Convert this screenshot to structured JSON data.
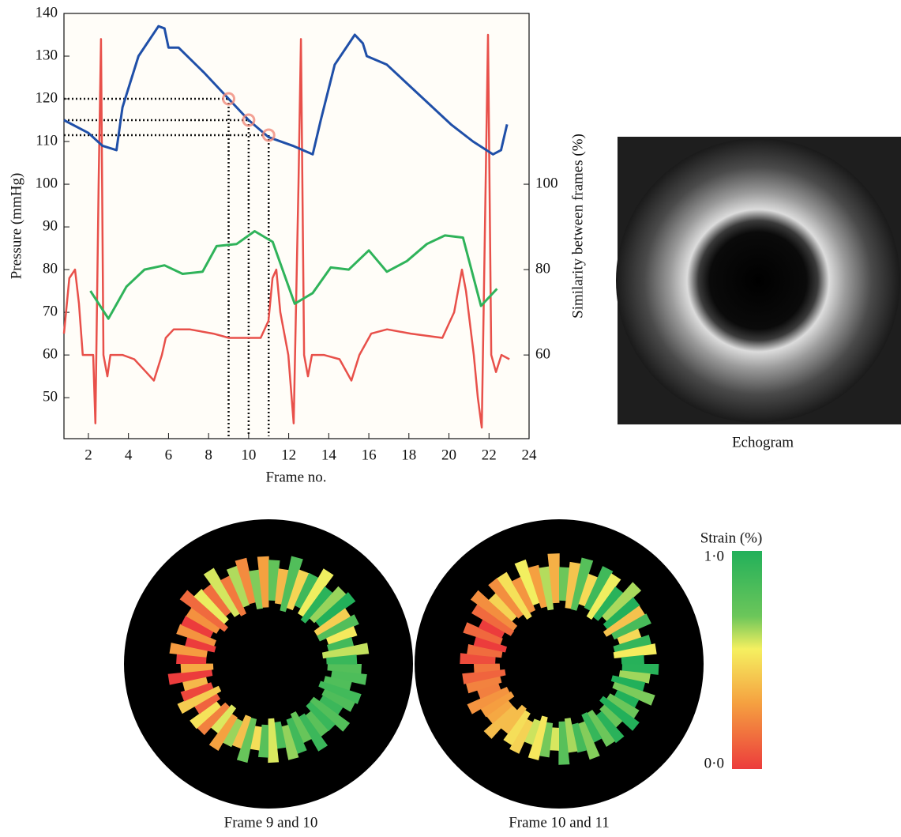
{
  "chart_data": {
    "type": "line",
    "xlabel": "Frame no.",
    "ylabel": "Pressure (mmHg)",
    "y2label": "Similarity between frames (%)",
    "xlim": [
      0.78,
      24
    ],
    "xticks": [
      2,
      4,
      6,
      8,
      10,
      12,
      14,
      16,
      18,
      20,
      22,
      24
    ],
    "ylim": [
      40.4,
      140
    ],
    "yticks": [
      50,
      60,
      70,
      80,
      90,
      100,
      110,
      120,
      130,
      140
    ],
    "y2lim": [
      40.4,
      140
    ],
    "y2ticks": [
      60,
      80,
      100
    ],
    "series": [
      {
        "color": "#e8504a",
        "x": [
          0.78,
          1.05,
          1.33,
          1.53,
          1.72,
          2.24,
          2.35,
          2.51,
          2.63,
          2.75,
          2.95,
          3.1,
          3.7,
          4.29,
          4.88,
          5.27,
          5.67,
          5.86,
          6.26,
          7.05,
          8.23,
          9.02,
          10.6,
          10.99,
          11.19,
          11.38,
          11.58,
          11.98,
          12.25,
          12.49,
          12.61,
          12.77,
          12.96,
          13.16,
          13.75,
          14.54,
          15.13,
          15.53,
          16.12,
          16.91,
          18.09,
          19.67,
          20.26,
          20.65,
          20.85,
          21.24,
          21.44,
          21.64,
          21.83,
          21.95,
          22.11,
          22.35,
          22.62,
          23.02
        ],
        "values": [
          65,
          78,
          80,
          72,
          60,
          60,
          44,
          100,
          134,
          60,
          55,
          60,
          60,
          59,
          56,
          54,
          60,
          64,
          66,
          66,
          65,
          64,
          64,
          68,
          78,
          80,
          70,
          60,
          44,
          100,
          134,
          60,
          55,
          60,
          60,
          59,
          54,
          60,
          65,
          66,
          65,
          64,
          70,
          80,
          75,
          60,
          50,
          43,
          100,
          135,
          60,
          56,
          60,
          59
        ]
      },
      {
        "color": "#1f4fa8",
        "x": [
          0.78,
          2,
          2.7,
          3.4,
          3.7,
          4.5,
          5.5,
          5.8,
          6,
          6.5,
          7.8,
          9,
          10,
          11,
          12.2,
          13.2,
          13.6,
          14.3,
          15.3,
          15.7,
          15.9,
          16.9,
          18.5,
          20.1,
          21.2,
          22.2,
          22.6,
          22.9
        ],
        "values": [
          115,
          112,
          109,
          108,
          118,
          130,
          137,
          136.5,
          132,
          132,
          126,
          120,
          115,
          111,
          109,
          107,
          115,
          128,
          135,
          133,
          130,
          128,
          121,
          114,
          110,
          107,
          108,
          114
        ]
      },
      {
        "color": "#2fb35a",
        "axis": "y2",
        "x": [
          2.1,
          3.0,
          3.9,
          4.8,
          5.8,
          6.7,
          7.7,
          8.4,
          9.4,
          10.3,
          11.2,
          12.3,
          13.2,
          14.1,
          15.0,
          16.0,
          16.9,
          17.9,
          18.9,
          19.8,
          20.7,
          21.6,
          22.4
        ],
        "values": [
          75,
          68.5,
          76,
          80,
          81,
          79,
          79.5,
          85.5,
          86,
          89,
          86.5,
          72,
          74.5,
          80.5,
          80,
          84.5,
          79.5,
          82,
          86,
          88,
          87.5,
          71.5,
          75.5
        ]
      }
    ],
    "highlights": {
      "color": "#f08a7a",
      "x": [
        9,
        10,
        11
      ],
      "values": [
        120,
        115,
        111.5
      ]
    }
  },
  "echogram": {
    "caption": "Echogram"
  },
  "strain_maps": [
    {
      "caption": "Frame 9 and 10"
    },
    {
      "caption": "Frame 10 and 11"
    }
  ],
  "colorbar": {
    "title": "Strain (%)",
    "lim": [
      0,
      1
    ],
    "ticks": [
      {
        "value": 1,
        "label": "1·0"
      },
      {
        "value": 0,
        "label": "0·0"
      }
    ]
  }
}
